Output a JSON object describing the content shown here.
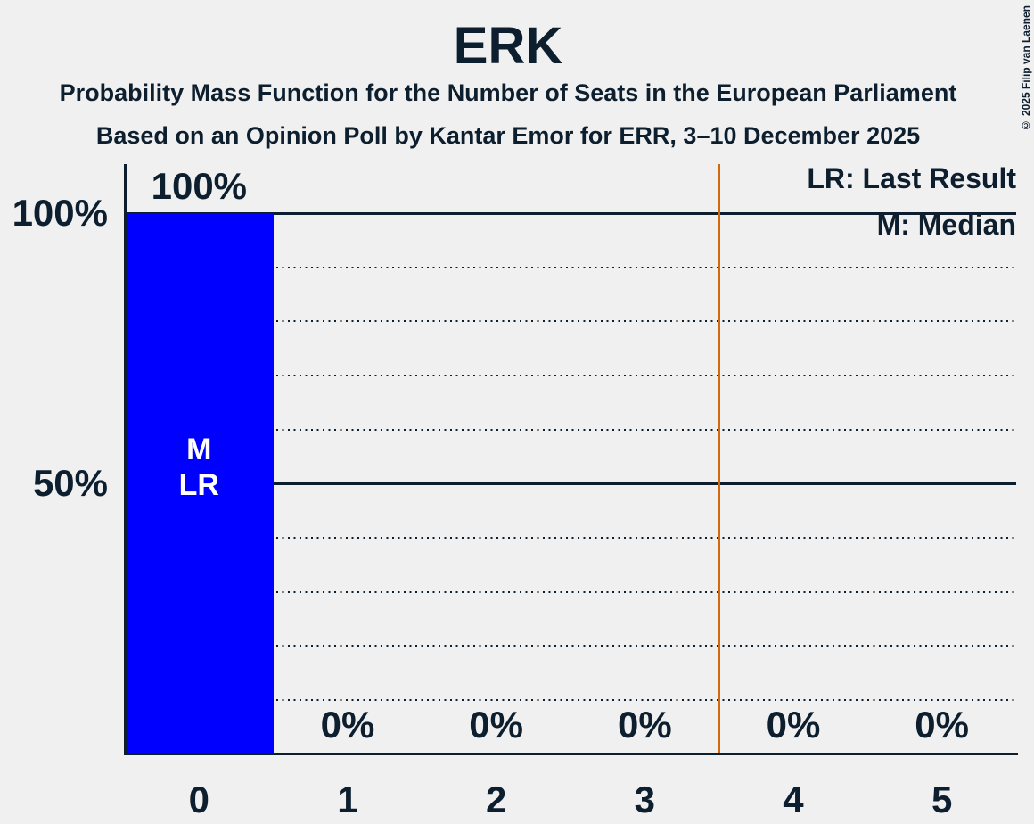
{
  "chart_data": {
    "type": "bar",
    "title": "ERK",
    "subtitle": "Probability Mass Function for the Number of Seats in the European Parliament",
    "source_line": "Based on an Opinion Poll by Kantar Emor for ERR, 3–10 December 2025",
    "categories": [
      "0",
      "1",
      "2",
      "3",
      "4",
      "5"
    ],
    "values": [
      100,
      0,
      0,
      0,
      0,
      0
    ],
    "value_labels": [
      "100%",
      "0%",
      "0%",
      "0%",
      "0%",
      "0%"
    ],
    "ylim": [
      0,
      100
    ],
    "y_axis_tick_labels": [
      "100%",
      "50%"
    ],
    "y_axis_tick_values": [
      100,
      50
    ],
    "gridlines": {
      "solid": [
        100,
        50
      ],
      "dotted": [
        90,
        80,
        70,
        60,
        40,
        30,
        20,
        10
      ]
    },
    "majority_threshold_line_x": 3.5,
    "bar_annotations": {
      "category_index": 0,
      "lines": [
        "M",
        "LR"
      ]
    },
    "legend": [
      "LR: Last Result",
      "M: Median"
    ],
    "legend_position": "top-right",
    "median_seats": 0,
    "last_result_seats": 0,
    "colors": {
      "background": "#F0F0F0",
      "ink": "#0D1F2E",
      "bar": "#0000FF",
      "bar_label": "#FFFFFF",
      "majority_line": "#D2690F"
    }
  },
  "copyright": "© 2025 Filip van Laenen"
}
